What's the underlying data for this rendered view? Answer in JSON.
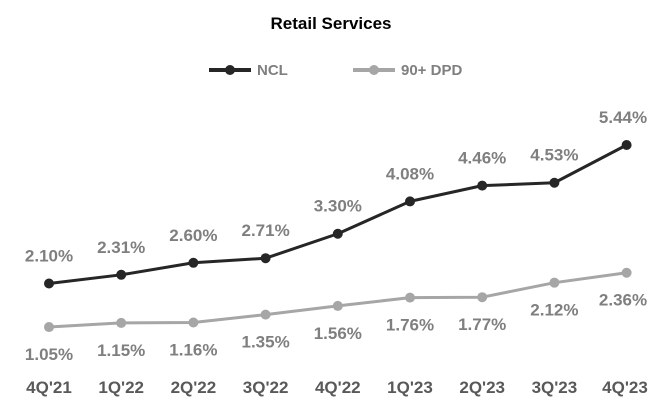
{
  "chart_data": {
    "type": "line",
    "title": "Retail Services",
    "xlabel": "",
    "ylabel": "",
    "categories": [
      "4Q'21",
      "1Q'22",
      "2Q'22",
      "3Q'22",
      "4Q'22",
      "1Q'23",
      "2Q'23",
      "3Q'23",
      "4Q'23"
    ],
    "series": [
      {
        "name": "NCL",
        "color": "#262626",
        "values": [
          2.1,
          2.31,
          2.6,
          2.71,
          3.3,
          4.08,
          4.46,
          4.53,
          5.44
        ],
        "labels": [
          "2.10%",
          "2.31%",
          "2.60%",
          "2.71%",
          "3.30%",
          "4.08%",
          "4.46%",
          "4.53%",
          "5.44%"
        ]
      },
      {
        "name": "90+ DPD",
        "color": "#a6a6a6",
        "values": [
          1.05,
          1.15,
          1.16,
          1.35,
          1.56,
          1.76,
          1.77,
          2.12,
          2.36
        ],
        "labels": [
          "1.05%",
          "1.15%",
          "1.16%",
          "1.35%",
          "1.56%",
          "1.76%",
          "1.77%",
          "2.12%",
          "2.36%"
        ]
      }
    ],
    "legend_position": "top-center",
    "grid": false
  }
}
